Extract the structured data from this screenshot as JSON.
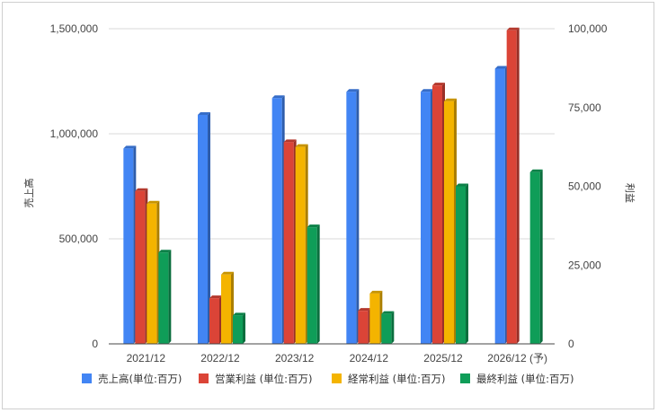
{
  "chart_data": {
    "type": "bar",
    "categories": [
      "2021/12",
      "2022/12",
      "2023/12",
      "2024/12",
      "2025/12",
      "2026/12 (予)"
    ],
    "series": [
      {
        "name": "売上高(単位:百万)",
        "axis": "left",
        "color": "#4285f4",
        "values": [
          930000,
          1090000,
          1170000,
          1200000,
          1200000,
          1310000
        ]
      },
      {
        "name": "営業利益 (単位:百万)",
        "axis": "right",
        "color": "#db4437",
        "values": [
          48500,
          14500,
          64000,
          10500,
          82000,
          99500
        ]
      },
      {
        "name": "経常利益 (単位:百万)",
        "axis": "right",
        "color": "#f4b400",
        "values": [
          44500,
          22000,
          62500,
          16000,
          77000,
          null
        ]
      },
      {
        "name": "最終利益 (単位:百万)",
        "axis": "right",
        "color": "#0f9d58",
        "values": [
          29000,
          9000,
          37000,
          9500,
          50000,
          54500
        ]
      }
    ],
    "y_left": {
      "label": "売上高",
      "range": [
        0,
        1500000
      ],
      "ticks": [
        "0",
        "500,000",
        "1,000,000",
        "1,500,000"
      ]
    },
    "y_right": {
      "label": "利益",
      "range": [
        0,
        100000
      ],
      "ticks": [
        "0",
        "25,000",
        "50,000",
        "75,000",
        "100,000"
      ]
    },
    "grid": true,
    "legend_position": "bottom"
  }
}
